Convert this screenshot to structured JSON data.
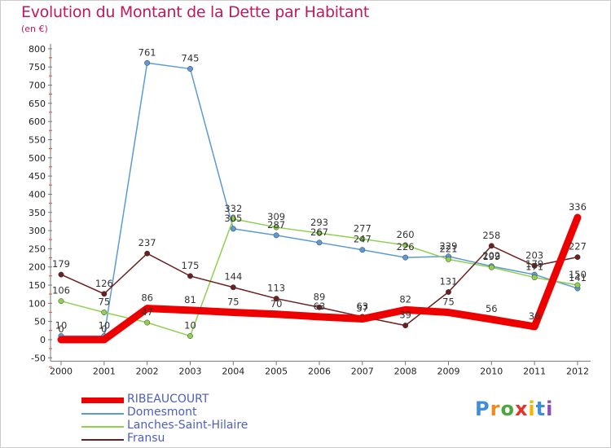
{
  "title": "Evolution du Montant de la Dette par Habitant",
  "subtitle": "(en €)",
  "logo": {
    "letters": [
      "P",
      "r",
      "o",
      "x",
      "i",
      "t",
      "i"
    ]
  },
  "chart_data": {
    "type": "line",
    "x": [
      "2000",
      "2001",
      "2002",
      "2003",
      "2004",
      "2005",
      "2006",
      "2007",
      "2008",
      "2009",
      "2010",
      "2011",
      "2012"
    ],
    "ylim": [
      -50,
      800
    ],
    "yticks": [
      -50,
      0,
      50,
      100,
      150,
      200,
      250,
      300,
      350,
      400,
      450,
      500,
      550,
      600,
      650,
      700,
      750,
      800
    ],
    "grid": false,
    "legend_position": "bottom-left",
    "series": [
      {
        "name": "RIBEAUCOURT",
        "color": "#ee0000",
        "width": 9,
        "marker": false,
        "values": [
          0,
          0,
          86,
          81,
          75,
          70,
          63,
          57,
          82,
          75,
          56,
          36,
          336
        ],
        "labels": [
          "0",
          "0",
          "86",
          "81",
          "75",
          "70",
          "63",
          "57",
          "82",
          "75",
          "56",
          "36",
          "336"
        ]
      },
      {
        "name": "Domesmont",
        "color": "#5b9bd5",
        "width": 1.5,
        "marker": true,
        "values": [
          10,
          10,
          761,
          745,
          305,
          287,
          267,
          247,
          226,
          229,
          202,
          179,
          141
        ],
        "labels": [
          "10",
          "10",
          "761",
          "745",
          "305",
          "287",
          "267",
          "247",
          "226",
          "229",
          "202",
          "179",
          "141"
        ]
      },
      {
        "name": "Lanches-Saint-Hilaire",
        "color": "#8fd14f",
        "width": 1.5,
        "marker": true,
        "values": [
          106,
          75,
          47,
          10,
          332,
          309,
          293,
          277,
          260,
          221,
          199,
          171,
          150
        ],
        "labels": [
          "106",
          "75",
          "47",
          "10",
          "332",
          "309",
          "293",
          "277",
          "260",
          "221",
          "199",
          "171",
          "150"
        ]
      },
      {
        "name": "Fransu",
        "color": "#6b1f1f",
        "width": 1.5,
        "marker": true,
        "values": [
          179,
          126,
          237,
          175,
          144,
          113,
          89,
          63,
          39,
          131,
          258,
          203,
          227
        ],
        "labels": [
          "179",
          "126",
          "237",
          "175",
          "144",
          "113",
          "89",
          "63",
          "39",
          "131",
          "258",
          "203",
          "227"
        ]
      }
    ]
  }
}
